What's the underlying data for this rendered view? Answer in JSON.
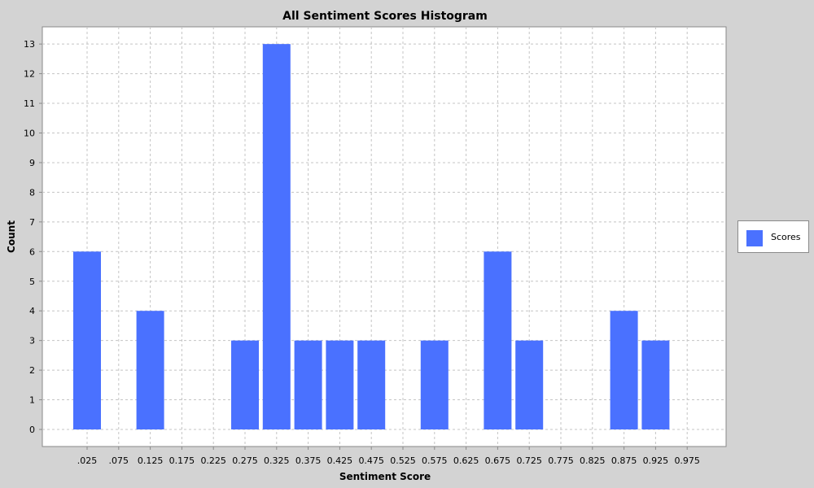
{
  "chart_data": {
    "type": "bar",
    "title": "All Sentiment Scores Histogram",
    "xlabel": "Sentiment Score",
    "ylabel": "Count",
    "categories": [
      ".025",
      ".075",
      "0.125",
      "0.175",
      "0.225",
      "0.275",
      "0.325",
      "0.375",
      "0.425",
      "0.475",
      "0.525",
      "0.575",
      "0.625",
      "0.675",
      "0.725",
      "0.775",
      "0.825",
      "0.875",
      "0.925",
      "0.975"
    ],
    "series": [
      {
        "name": "Scores",
        "color": "#4a71ff",
        "values": [
          6,
          0,
          4,
          0,
          0,
          3,
          13,
          3,
          3,
          3,
          0,
          3,
          0,
          6,
          3,
          0,
          0,
          4,
          3,
          0
        ]
      }
    ],
    "ylim": [
      0,
      13
    ],
    "yticks": [
      0,
      1,
      2,
      3,
      4,
      5,
      6,
      7,
      8,
      9,
      10,
      11,
      12,
      13
    ],
    "grid": true,
    "legend_position": "right"
  }
}
